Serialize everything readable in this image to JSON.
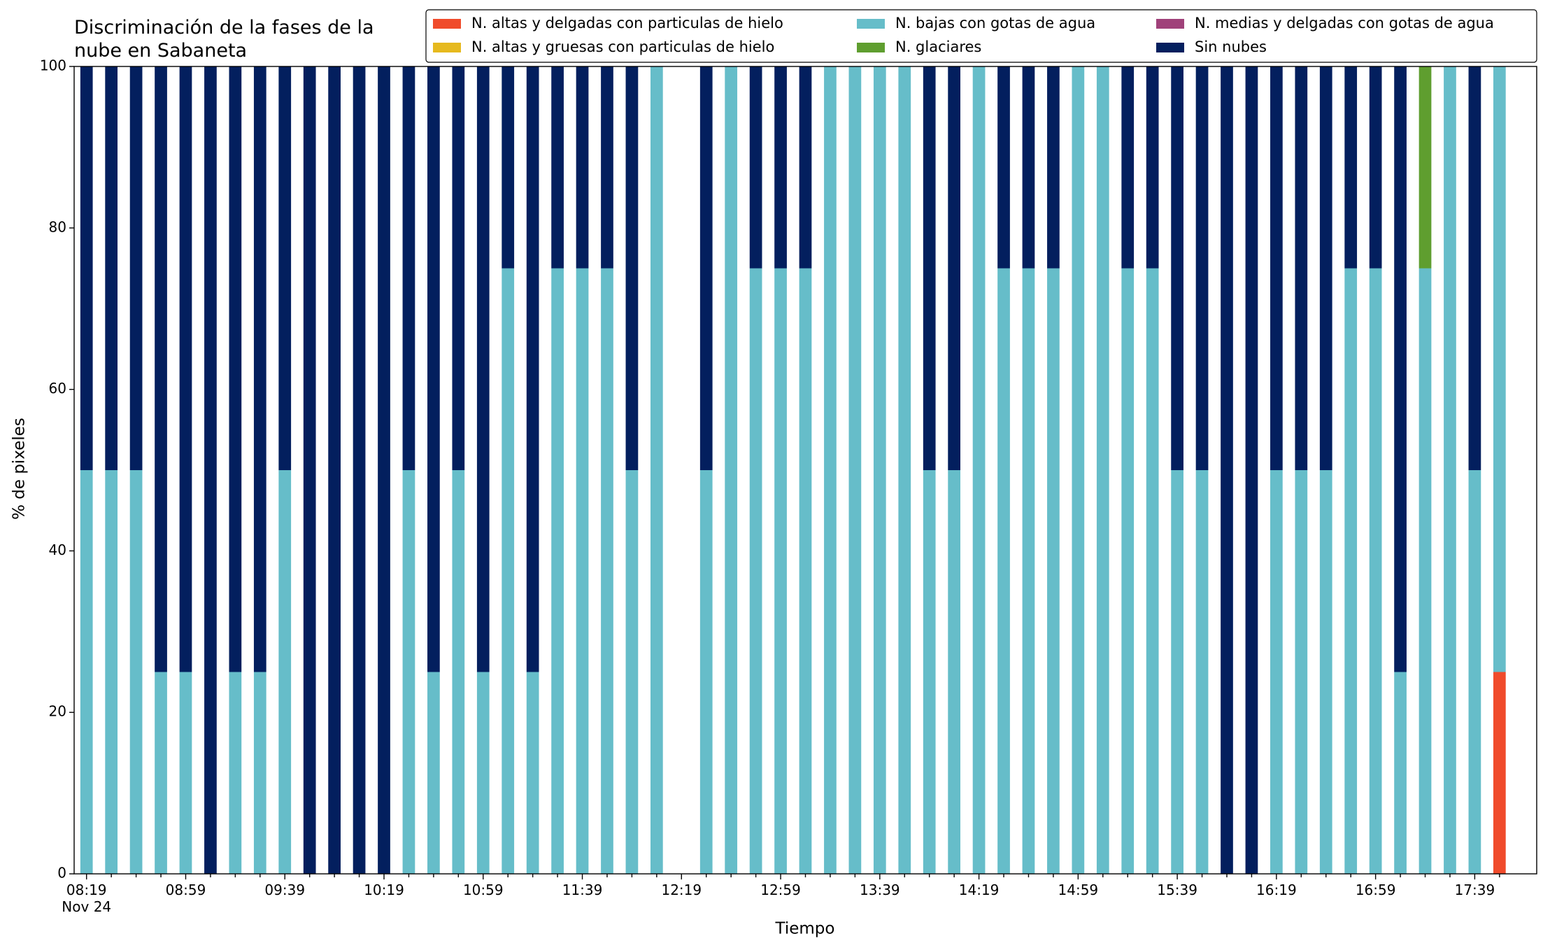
{
  "chart_data": {
    "type": "stacked_bar",
    "title": "Discriminación de la fases de la\nnube en Sabaneta",
    "xlabel": "Tiempo",
    "ylabel": "% de pixeles",
    "categories": [
      "08:19\nNov 24",
      null,
      null,
      null,
      "08:59",
      null,
      null,
      null,
      "09:39",
      null,
      null,
      null,
      "10:19",
      null,
      null,
      null,
      "10:59",
      null,
      null,
      null,
      "11:39",
      null,
      null,
      null,
      "12:19",
      null,
      null,
      null,
      "12:59",
      null,
      null,
      null,
      "13:39",
      null,
      null,
      null,
      "14:19",
      null,
      null,
      null,
      "14:59",
      null,
      null,
      null,
      "15:39",
      null,
      null,
      null,
      "16:19",
      null,
      null,
      null,
      "16:59",
      null,
      null,
      null,
      "17:39",
      null
    ],
    "series": [
      {
        "name": "N. altas y delgadas con particulas de hielo",
        "color": "#f04b2b",
        "values": [
          0,
          0,
          0,
          0,
          0,
          0,
          0,
          0,
          0,
          0,
          0,
          0,
          0,
          0,
          0,
          0,
          0,
          0,
          0,
          0,
          0,
          0,
          0,
          0,
          0,
          0,
          0,
          0,
          0,
          0,
          0,
          0,
          0,
          0,
          0,
          0,
          0,
          0,
          0,
          0,
          0,
          0,
          0,
          0,
          0,
          0,
          0,
          0,
          0,
          0,
          0,
          0,
          0,
          0,
          0,
          0,
          0,
          25
        ]
      },
      {
        "name": "N. altas y gruesas con particulas de hielo",
        "color": "#e6b91e",
        "values": [
          0,
          0,
          0,
          0,
          0,
          0,
          0,
          0,
          0,
          0,
          0,
          0,
          0,
          0,
          0,
          0,
          0,
          0,
          0,
          0,
          0,
          0,
          0,
          0,
          0,
          0,
          0,
          0,
          0,
          0,
          0,
          0,
          0,
          0,
          0,
          0,
          0,
          0,
          0,
          0,
          0,
          0,
          0,
          0,
          0,
          0,
          0,
          0,
          0,
          0,
          0,
          0,
          0,
          0,
          0,
          0,
          0,
          0
        ]
      },
      {
        "name": "N. bajas con gotas de agua",
        "color": "#66bdc9",
        "values": [
          50,
          50,
          50,
          25,
          25,
          0,
          25,
          25,
          50,
          0,
          0,
          0,
          0,
          50,
          25,
          50,
          25,
          75,
          25,
          75,
          75,
          75,
          50,
          100,
          0,
          50,
          100,
          75,
          75,
          75,
          100,
          100,
          100,
          100,
          50,
          50,
          100,
          75,
          75,
          75,
          100,
          100,
          75,
          75,
          50,
          50,
          0,
          0,
          50,
          50,
          50,
          75,
          75,
          25,
          75,
          100,
          50,
          75
        ]
      },
      {
        "name": "N. glaciares",
        "color": "#5f9e2f",
        "values": [
          0,
          0,
          0,
          0,
          0,
          0,
          0,
          0,
          0,
          0,
          0,
          0,
          0,
          0,
          0,
          0,
          0,
          0,
          0,
          0,
          0,
          0,
          0,
          0,
          0,
          0,
          0,
          0,
          0,
          0,
          0,
          0,
          0,
          0,
          0,
          0,
          0,
          0,
          0,
          0,
          0,
          0,
          0,
          0,
          0,
          0,
          0,
          0,
          0,
          0,
          0,
          0,
          0,
          0,
          25,
          0,
          0,
          0
        ]
      },
      {
        "name": "N. medias y delgadas con gotas de agua",
        "color": "#a0417a",
        "values": [
          0,
          0,
          0,
          0,
          0,
          0,
          0,
          0,
          0,
          0,
          0,
          0,
          0,
          0,
          0,
          0,
          0,
          0,
          0,
          0,
          0,
          0,
          0,
          0,
          0,
          0,
          0,
          0,
          0,
          0,
          0,
          0,
          0,
          0,
          0,
          0,
          0,
          0,
          0,
          0,
          0,
          0,
          0,
          0,
          0,
          0,
          0,
          0,
          0,
          0,
          0,
          0,
          0,
          0,
          0,
          0,
          0,
          0
        ]
      },
      {
        "name": "Sin nubes",
        "color": "#031f5e",
        "values": [
          50,
          50,
          50,
          75,
          75,
          100,
          75,
          75,
          50,
          100,
          100,
          100,
          100,
          50,
          75,
          50,
          75,
          25,
          75,
          25,
          25,
          25,
          50,
          0,
          0,
          50,
          0,
          25,
          25,
          25,
          0,
          0,
          0,
          0,
          50,
          50,
          0,
          25,
          25,
          25,
          0,
          0,
          25,
          25,
          50,
          50,
          100,
          100,
          50,
          50,
          50,
          25,
          25,
          75,
          0,
          0,
          50,
          0
        ]
      }
    ],
    "ylim": [
      0,
      100
    ],
    "yticks": [
      0,
      20,
      40,
      60,
      80,
      100
    ],
    "grid": false,
    "legend": "upper right"
  }
}
